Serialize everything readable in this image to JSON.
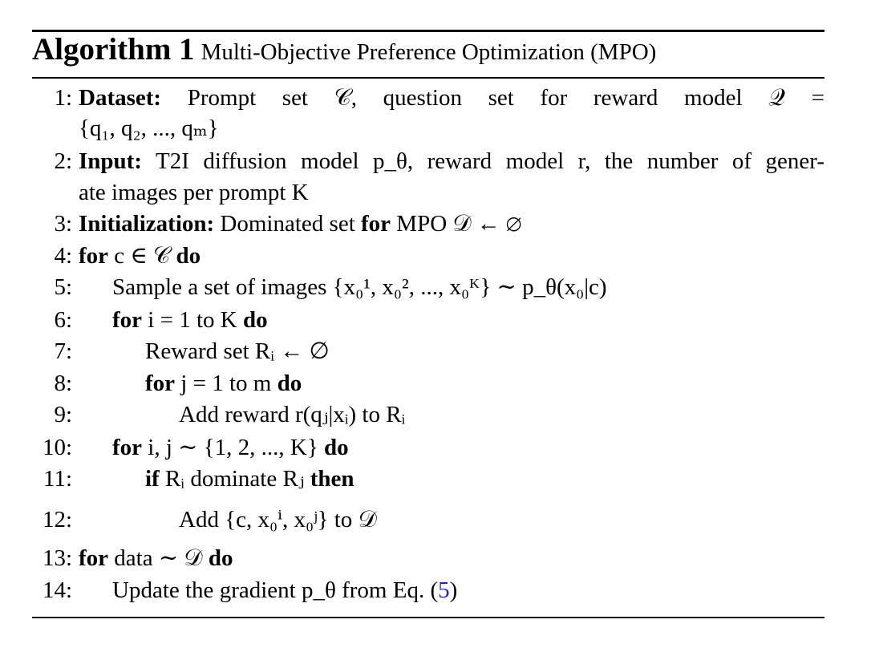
{
  "algorithm": {
    "label": "Algorithm 1",
    "name": "Multi-Objective Preference Optimization (MPO)",
    "lines": [
      {
        "num": "1:",
        "kw": "Dataset:",
        "text": "Prompt set 𝒞, question set for reward model 𝒬 =",
        "cont": "{q₁, q₂, ..., qₘ}"
      },
      {
        "num": "2:",
        "kw": "Input:",
        "text": "T2I diffusion model p_θ, reward model r, the number of gener-",
        "cont": "ate images per prompt K"
      },
      {
        "num": "3:",
        "kw": "Initialization:",
        "text": "Dominated set for MPO 𝒟 ← ∅"
      },
      {
        "num": "4:",
        "text": "for c ∈ 𝒞 do"
      },
      {
        "num": "5:",
        "text": "Sample a set of images {x₀¹, x₀², ..., x₀ᴷ} ∼ p_θ(x₀|c)"
      },
      {
        "num": "6:",
        "text": "for i = 1 to K do"
      },
      {
        "num": "7:",
        "text": "Reward set Rᵢ ← ∅"
      },
      {
        "num": "8:",
        "text": "for j = 1 to m do"
      },
      {
        "num": "9:",
        "text": "Add reward r(qⱼ|xᵢ) to Rᵢ"
      },
      {
        "num": "10:",
        "text": "for i, j ∼ {1, 2, ..., K} do"
      },
      {
        "num": "11:",
        "text": "if Rᵢ dominate Rⱼ then"
      },
      {
        "num": "12:",
        "text": "Add {c, x₀ⁱ, x₀ʲ} to 𝒟"
      },
      {
        "num": "13:",
        "text": "for data ∼ 𝒟 do"
      },
      {
        "num": "14:",
        "text": "Update the gradient p_θ from Eq. (5)"
      }
    ]
  }
}
